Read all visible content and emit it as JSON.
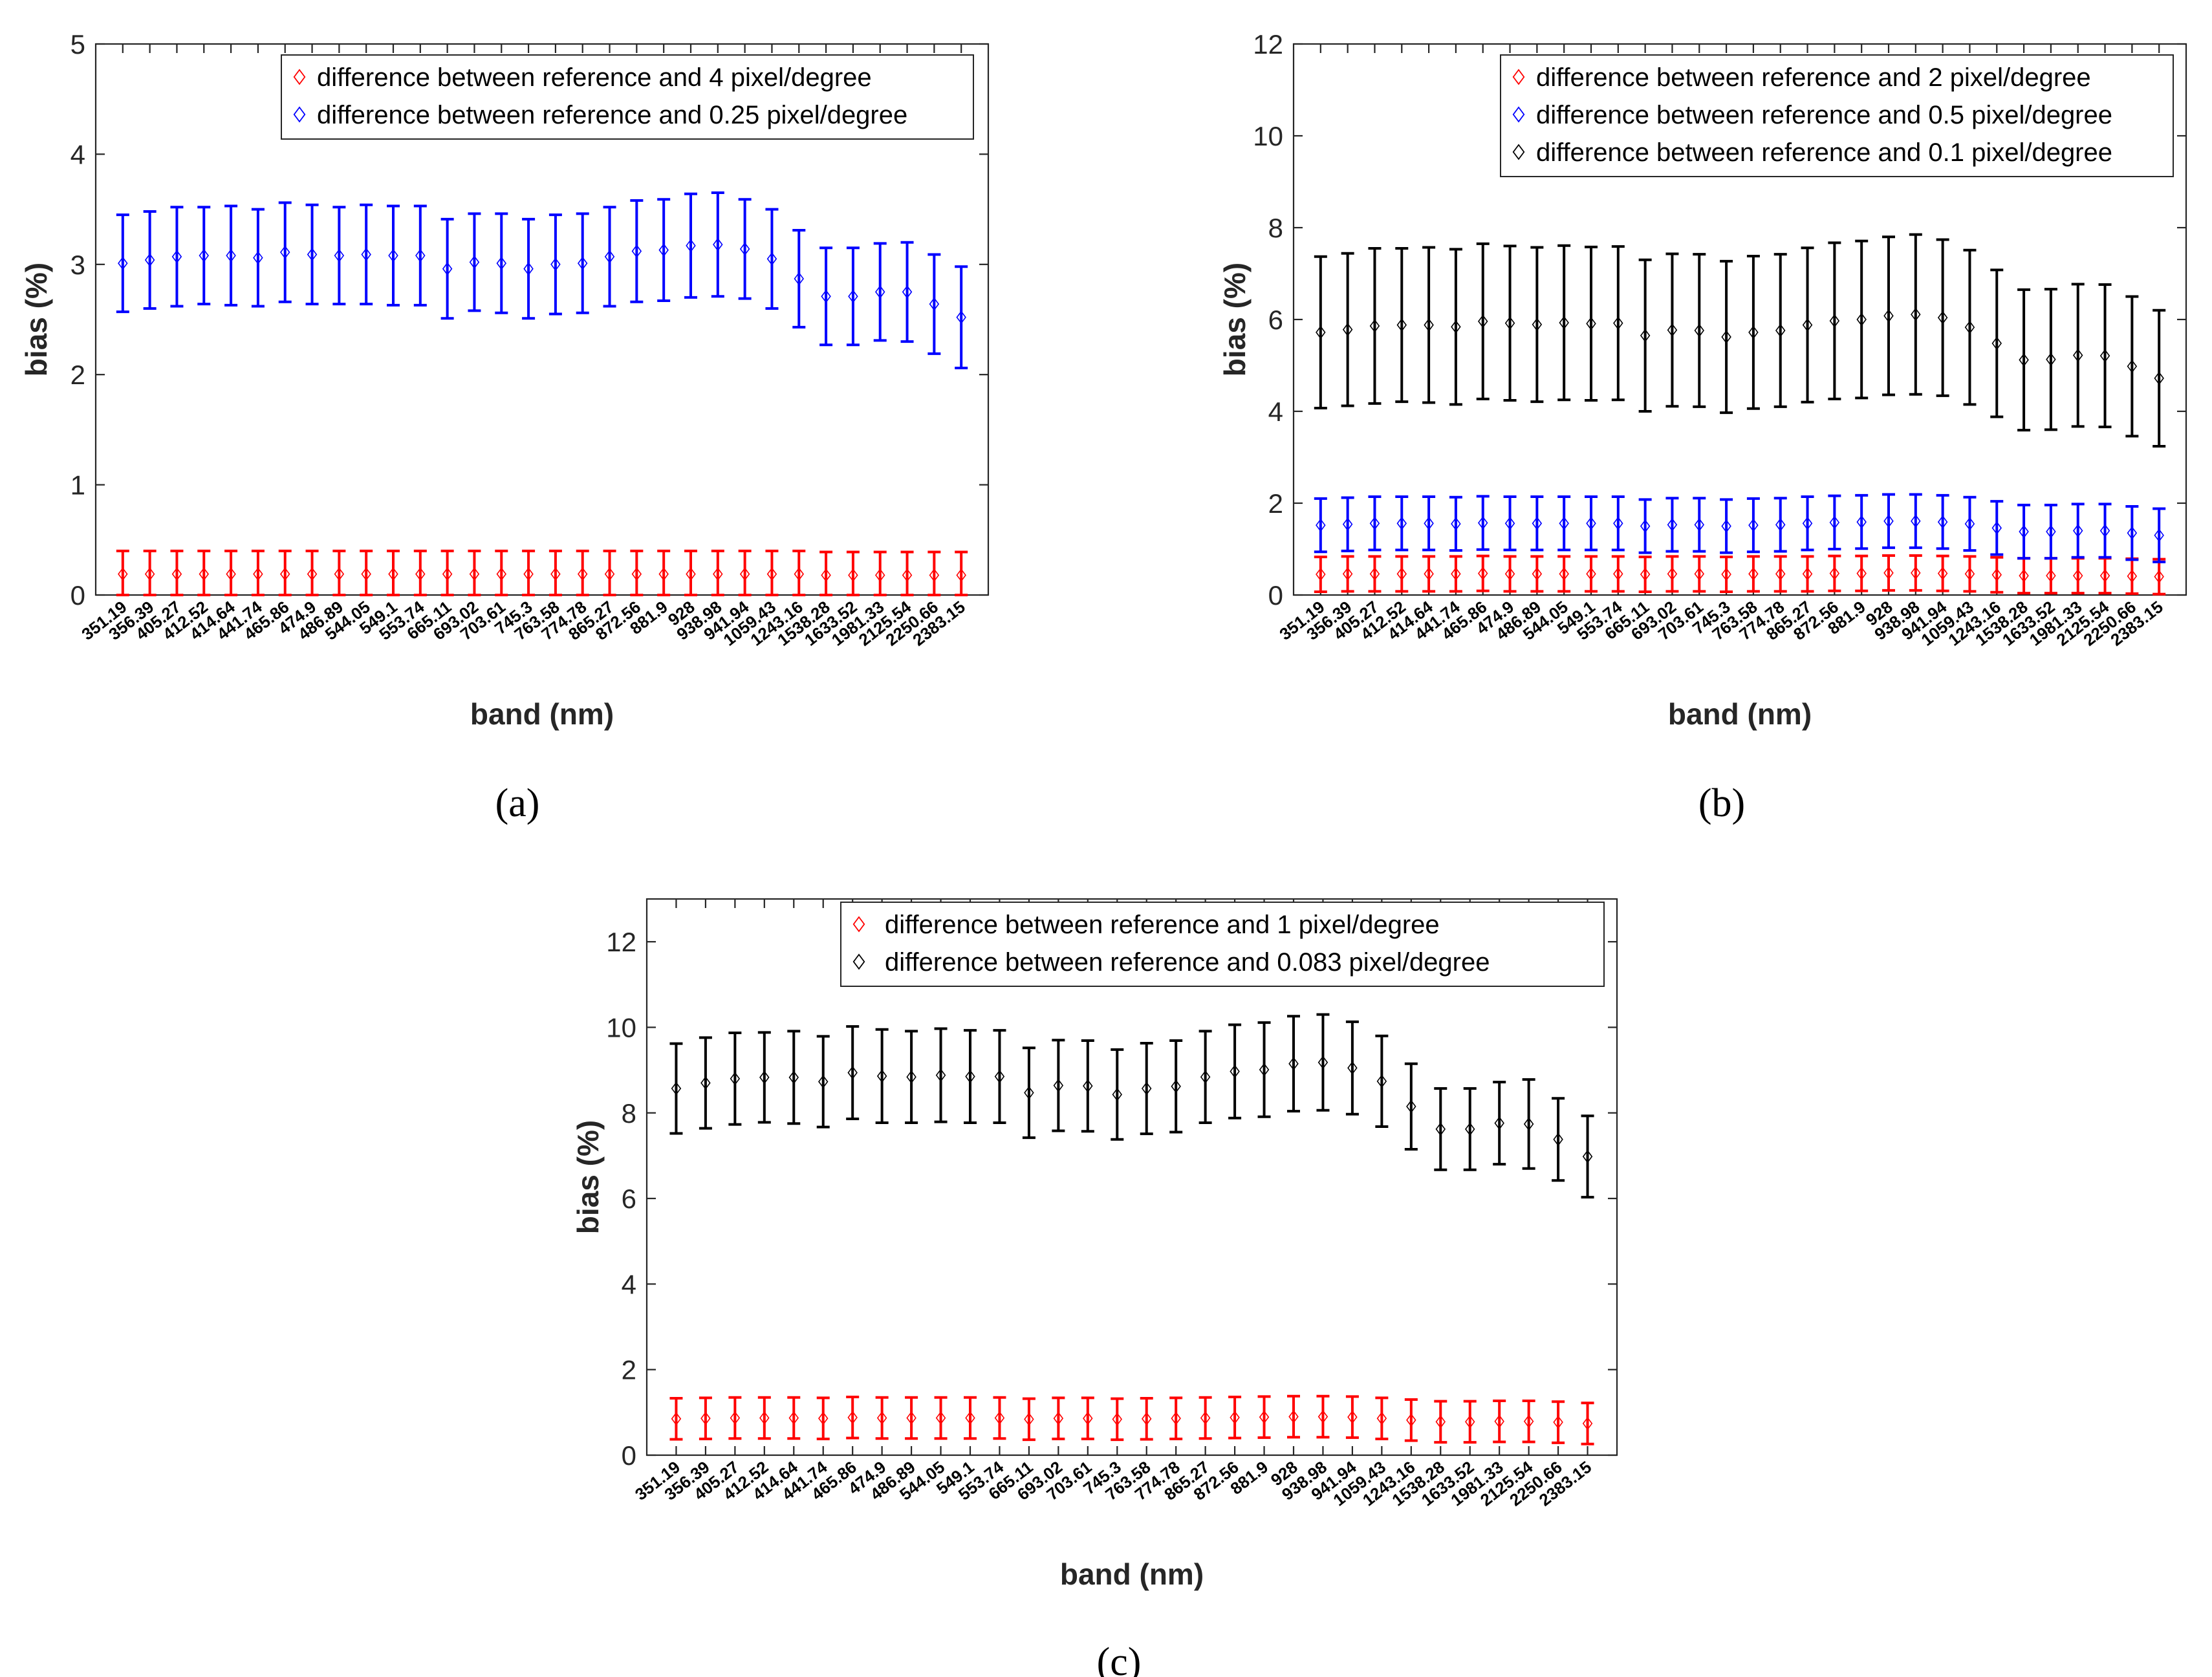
{
  "chart_data": [
    {
      "id": "a",
      "type": "errorbar",
      "caption": "(a)",
      "xlabel": "band (nm)",
      "ylabel": "bias (%)",
      "ylim": [
        0,
        5
      ],
      "yticks": [
        "0",
        "1",
        "2",
        "3",
        "4",
        "5"
      ],
      "legend_position": "top-right",
      "categories": [
        "351.19",
        "356.39",
        "405.27",
        "412.52",
        "414.64",
        "441.74",
        "465.86",
        "474.9",
        "486.89",
        "544.05",
        "549.1",
        "553.74",
        "665.11",
        "693.02",
        "703.61",
        "745.3",
        "763.58",
        "774.78",
        "865.27",
        "872.56",
        "881.9",
        "928",
        "938.98",
        "941.94",
        "1059.43",
        "1243.16",
        "1538.28",
        "1633.52",
        "1981.33",
        "2125.54",
        "2250.66",
        "2383.15"
      ],
      "series": [
        {
          "name": "difference between reference and 4 pixel/degree",
          "color": "#ff0000",
          "values": [
            0.19,
            0.19,
            0.19,
            0.19,
            0.19,
            0.19,
            0.19,
            0.19,
            0.19,
            0.19,
            0.19,
            0.19,
            0.19,
            0.19,
            0.19,
            0.19,
            0.19,
            0.19,
            0.19,
            0.19,
            0.19,
            0.19,
            0.19,
            0.19,
            0.19,
            0.19,
            0.18,
            0.18,
            0.18,
            0.18,
            0.18,
            0.18
          ],
          "err": [
            0.21,
            0.21,
            0.21,
            0.21,
            0.21,
            0.21,
            0.21,
            0.21,
            0.21,
            0.21,
            0.21,
            0.21,
            0.21,
            0.21,
            0.21,
            0.21,
            0.21,
            0.21,
            0.21,
            0.21,
            0.21,
            0.21,
            0.21,
            0.21,
            0.21,
            0.21,
            0.21,
            0.21,
            0.21,
            0.21,
            0.21,
            0.21
          ]
        },
        {
          "name": "difference between reference and 0.25 pixel/degree",
          "color": "#0000ff",
          "values": [
            3.01,
            3.04,
            3.07,
            3.08,
            3.08,
            3.06,
            3.11,
            3.09,
            3.08,
            3.09,
            3.08,
            3.08,
            2.96,
            3.02,
            3.01,
            2.96,
            3.0,
            3.01,
            3.07,
            3.12,
            3.13,
            3.17,
            3.18,
            3.14,
            3.05,
            2.87,
            2.71,
            2.71,
            2.75,
            2.75,
            2.64,
            2.52
          ],
          "err": [
            0.44,
            0.44,
            0.45,
            0.44,
            0.45,
            0.44,
            0.45,
            0.45,
            0.44,
            0.45,
            0.45,
            0.45,
            0.45,
            0.44,
            0.45,
            0.45,
            0.45,
            0.45,
            0.45,
            0.46,
            0.46,
            0.47,
            0.47,
            0.45,
            0.45,
            0.44,
            0.44,
            0.44,
            0.44,
            0.45,
            0.45,
            0.46
          ]
        }
      ]
    },
    {
      "id": "b",
      "type": "errorbar",
      "caption": "(b)",
      "xlabel": "band (nm)",
      "ylabel": "bias (%)",
      "ylim": [
        0,
        12
      ],
      "yticks": [
        "0",
        "2",
        "4",
        "6",
        "8",
        "10",
        "12"
      ],
      "legend_position": "top-right",
      "categories": [
        "351.19",
        "356.39",
        "405.27",
        "412.52",
        "414.64",
        "441.74",
        "465.86",
        "474.9",
        "486.89",
        "544.05",
        "549.1",
        "553.74",
        "665.11",
        "693.02",
        "703.61",
        "745.3",
        "763.58",
        "774.78",
        "865.27",
        "872.56",
        "881.9",
        "928",
        "938.98",
        "941.94",
        "1059.43",
        "1243.16",
        "1538.28",
        "1633.52",
        "1981.33",
        "2125.54",
        "2250.66",
        "2383.15"
      ],
      "series": [
        {
          "name": "difference between reference and 2 pixel/degree",
          "color": "#ff0000",
          "values": [
            0.45,
            0.46,
            0.46,
            0.46,
            0.46,
            0.46,
            0.47,
            0.46,
            0.46,
            0.46,
            0.46,
            0.46,
            0.45,
            0.46,
            0.46,
            0.45,
            0.46,
            0.46,
            0.46,
            0.47,
            0.47,
            0.48,
            0.48,
            0.47,
            0.46,
            0.44,
            0.42,
            0.42,
            0.42,
            0.42,
            0.41,
            0.4
          ],
          "err": [
            0.38,
            0.38,
            0.38,
            0.38,
            0.38,
            0.38,
            0.38,
            0.38,
            0.38,
            0.38,
            0.38,
            0.38,
            0.38,
            0.38,
            0.38,
            0.38,
            0.38,
            0.38,
            0.38,
            0.38,
            0.38,
            0.38,
            0.38,
            0.38,
            0.38,
            0.38,
            0.38,
            0.38,
            0.38,
            0.38,
            0.38,
            0.38
          ]
        },
        {
          "name": "difference between reference and 0.5 pixel/degree",
          "color": "#0000ff",
          "values": [
            1.52,
            1.54,
            1.56,
            1.56,
            1.56,
            1.55,
            1.57,
            1.56,
            1.56,
            1.56,
            1.56,
            1.56,
            1.5,
            1.53,
            1.53,
            1.5,
            1.52,
            1.53,
            1.56,
            1.58,
            1.59,
            1.61,
            1.61,
            1.59,
            1.55,
            1.46,
            1.38,
            1.38,
            1.4,
            1.4,
            1.35,
            1.3
          ],
          "err": [
            0.58,
            0.58,
            0.58,
            0.58,
            0.58,
            0.58,
            0.58,
            0.58,
            0.58,
            0.58,
            0.58,
            0.58,
            0.58,
            0.58,
            0.58,
            0.58,
            0.58,
            0.58,
            0.58,
            0.58,
            0.58,
            0.58,
            0.58,
            0.58,
            0.58,
            0.58,
            0.58,
            0.58,
            0.58,
            0.58,
            0.58,
            0.58
          ]
        },
        {
          "name": "difference between reference and 0.1 pixel/degree",
          "color": "#000000",
          "values": [
            5.72,
            5.78,
            5.86,
            5.88,
            5.88,
            5.84,
            5.96,
            5.92,
            5.89,
            5.93,
            5.91,
            5.92,
            5.65,
            5.77,
            5.76,
            5.62,
            5.72,
            5.76,
            5.88,
            5.97,
            6.0,
            6.08,
            6.11,
            6.04,
            5.83,
            5.48,
            5.12,
            5.13,
            5.22,
            5.21,
            4.98,
            4.72
          ],
          "err": [
            1.65,
            1.66,
            1.69,
            1.67,
            1.69,
            1.69,
            1.69,
            1.68,
            1.68,
            1.68,
            1.67,
            1.67,
            1.65,
            1.66,
            1.66,
            1.65,
            1.66,
            1.66,
            1.68,
            1.7,
            1.71,
            1.72,
            1.74,
            1.7,
            1.68,
            1.6,
            1.53,
            1.53,
            1.55,
            1.55,
            1.52,
            1.48
          ]
        }
      ]
    },
    {
      "id": "c",
      "type": "errorbar",
      "caption": "(c)",
      "xlabel": "band (nm)",
      "ylabel": "bias (%)",
      "ylim": [
        0,
        13
      ],
      "yticks": [
        "0",
        "2",
        "4",
        "6",
        "8",
        "10",
        "12"
      ],
      "legend_position": "top-right",
      "categories": [
        "351.19",
        "356.39",
        "405.27",
        "412.52",
        "414.64",
        "441.74",
        "465.86",
        "474.9",
        "486.89",
        "544.05",
        "549.1",
        "553.74",
        "665.11",
        "693.02",
        "703.61",
        "745.3",
        "763.58",
        "774.78",
        "865.27",
        "872.56",
        "881.9",
        "928",
        "938.98",
        "941.94",
        "1059.43",
        "1243.16",
        "1538.28",
        "1633.52",
        "1981.33",
        "2125.54",
        "2250.66",
        "2383.15"
      ],
      "series": [
        {
          "name": "difference between reference and 1 pixel/degree",
          "color": "#ff0000",
          "values": [
            0.85,
            0.86,
            0.87,
            0.87,
            0.87,
            0.86,
            0.88,
            0.87,
            0.87,
            0.87,
            0.87,
            0.87,
            0.84,
            0.86,
            0.86,
            0.84,
            0.85,
            0.86,
            0.87,
            0.88,
            0.89,
            0.9,
            0.9,
            0.89,
            0.86,
            0.82,
            0.78,
            0.78,
            0.79,
            0.79,
            0.77,
            0.74
          ],
          "err": [
            0.48,
            0.48,
            0.48,
            0.48,
            0.48,
            0.48,
            0.48,
            0.48,
            0.48,
            0.48,
            0.48,
            0.48,
            0.48,
            0.48,
            0.48,
            0.48,
            0.48,
            0.48,
            0.48,
            0.48,
            0.48,
            0.48,
            0.48,
            0.48,
            0.48,
            0.48,
            0.48,
            0.48,
            0.48,
            0.48,
            0.48,
            0.48
          ]
        },
        {
          "name": "difference between reference and 0.083 pixel/degree",
          "color": "#000000",
          "values": [
            8.57,
            8.7,
            8.8,
            8.83,
            8.83,
            8.73,
            8.94,
            8.86,
            8.84,
            8.88,
            8.85,
            8.85,
            8.47,
            8.64,
            8.63,
            8.43,
            8.57,
            8.62,
            8.84,
            8.97,
            9.01,
            9.15,
            9.18,
            9.05,
            8.74,
            8.15,
            7.62,
            7.62,
            7.76,
            7.74,
            7.38,
            6.98
          ],
          "err": [
            1.05,
            1.06,
            1.07,
            1.05,
            1.08,
            1.06,
            1.08,
            1.09,
            1.07,
            1.09,
            1.08,
            1.08,
            1.05,
            1.06,
            1.06,
            1.05,
            1.06,
            1.07,
            1.07,
            1.09,
            1.1,
            1.11,
            1.12,
            1.08,
            1.06,
            1.0,
            0.95,
            0.95,
            0.96,
            1.04,
            0.96,
            0.95
          ]
        }
      ]
    }
  ]
}
